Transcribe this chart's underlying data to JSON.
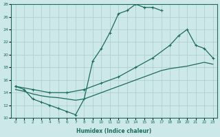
{
  "xlabel": "Humidex (Indice chaleur)",
  "bg_color": "#cde8e8",
  "grid_color": "#b0d0d0",
  "line_color": "#1a6b5a",
  "xlim": [
    -0.5,
    23.5
  ],
  "ylim": [
    10,
    28
  ],
  "xticks": [
    0,
    1,
    2,
    3,
    4,
    5,
    6,
    7,
    8,
    9,
    10,
    11,
    12,
    13,
    14,
    15,
    16,
    17,
    18,
    19,
    20,
    21,
    22,
    23
  ],
  "yticks": [
    10,
    12,
    14,
    16,
    18,
    20,
    22,
    24,
    26,
    28
  ],
  "line1_x": [
    0,
    1,
    2,
    3,
    4,
    5,
    6,
    7,
    8,
    9,
    10,
    11,
    12,
    13,
    14,
    15,
    16,
    17
  ],
  "line1_y": [
    15.0,
    14.5,
    13.0,
    12.5,
    12.0,
    11.5,
    11.0,
    10.5,
    13.0,
    19.0,
    21.0,
    23.5,
    26.5,
    27.0,
    28.0,
    27.5,
    27.5,
    27.0
  ],
  "line2_x": [
    0,
    2,
    4,
    6,
    8,
    10,
    12,
    14,
    16,
    18,
    19,
    20,
    21,
    22,
    23
  ],
  "line2_y": [
    15.0,
    14.5,
    14.0,
    14.0,
    14.5,
    15.5,
    16.5,
    18.0,
    19.5,
    21.5,
    23.0,
    24.0,
    21.5,
    21.0,
    19.5
  ],
  "line3_x": [
    0,
    1,
    2,
    3,
    4,
    5,
    6,
    7,
    8,
    9,
    10,
    11,
    12,
    13,
    14,
    15,
    16,
    17,
    18,
    19,
    20,
    21,
    22,
    23
  ],
  "line3_y": [
    14.5,
    14.2,
    13.8,
    13.5,
    13.3,
    13.2,
    13.0,
    12.8,
    13.0,
    13.5,
    14.0,
    14.5,
    15.0,
    15.5,
    16.0,
    16.5,
    17.0,
    17.5,
    17.8,
    18.0,
    18.2,
    18.5,
    18.8,
    18.5
  ]
}
